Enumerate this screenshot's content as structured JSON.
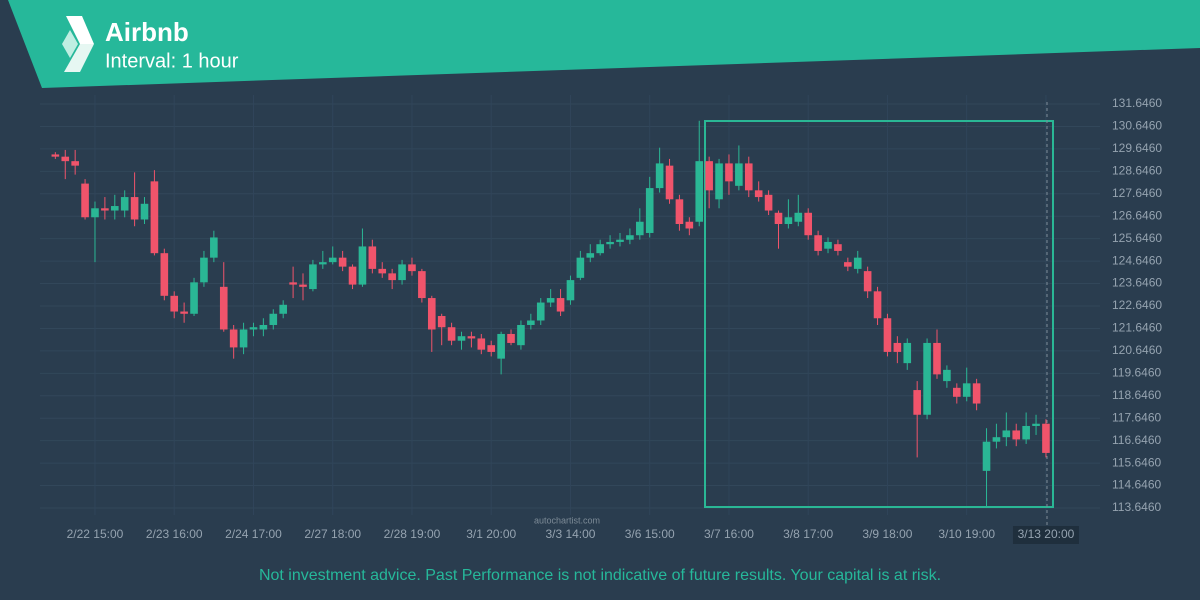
{
  "chart_data": {
    "type": "candlestick",
    "title": "Airbnb",
    "subtitle": "Interval: 1 hour",
    "source": "autochartist.com",
    "disclaimer": "Not investment advice. Past Performance is not indicative of future results. Your capital is at risk.",
    "categories": [
      null,
      null,
      null,
      null,
      "2/22 15:00",
      null,
      null,
      null,
      null,
      null,
      null,
      null,
      "2/23 16:00",
      null,
      null,
      null,
      null,
      null,
      null,
      null,
      "2/24 17:00",
      null,
      null,
      null,
      null,
      null,
      null,
      null,
      "2/27 18:00",
      null,
      null,
      null,
      null,
      null,
      null,
      null,
      "2/28 19:00",
      null,
      null,
      null,
      null,
      null,
      null,
      null,
      "3/1 20:00",
      null,
      null,
      null,
      null,
      null,
      null,
      null,
      "3/3 14:00",
      null,
      null,
      null,
      null,
      null,
      null,
      null,
      "3/6 15:00",
      null,
      null,
      null,
      null,
      null,
      null,
      null,
      "3/7 16:00",
      null,
      null,
      null,
      null,
      null,
      null,
      null,
      "3/8 17:00",
      null,
      null,
      null,
      null,
      null,
      null,
      null,
      "3/9 18:00",
      null,
      null,
      null,
      null,
      null,
      null,
      null,
      "3/10 19:00",
      null,
      null,
      null,
      null,
      null,
      null,
      null,
      "3/13 20:00"
    ],
    "open": [
      129.4,
      129.3,
      129.1,
      128.1,
      126.6,
      127.0,
      126.9,
      126.9,
      127.5,
      126.5,
      128.2,
      125.0,
      123.1,
      122.4,
      122.3,
      123.7,
      124.8,
      123.5,
      121.6,
      120.8,
      121.6,
      121.6,
      121.8,
      122.3,
      123.7,
      123.6,
      123.4,
      124.5,
      124.6,
      124.8,
      124.4,
      123.6,
      125.3,
      124.3,
      124.1,
      123.8,
      124.5,
      124.2,
      123.0,
      122.2,
      121.7,
      121.1,
      121.3,
      121.2,
      120.9,
      120.3,
      121.4,
      120.9,
      121.8,
      122.0,
      122.8,
      123.0,
      122.9,
      123.9,
      124.8,
      125.0,
      125.4,
      125.5,
      125.6,
      125.8,
      125.9,
      127.9,
      128.9,
      127.4,
      126.4,
      126.4,
      129.1,
      127.4,
      129.0,
      128.0,
      129.0,
      127.8,
      127.6,
      126.8,
      126.3,
      126.4,
      126.8,
      125.8,
      125.2,
      125.4,
      124.6,
      124.3,
      124.2,
      123.3,
      122.1,
      121.0,
      120.1,
      118.9,
      117.8,
      121.0,
      119.3,
      119.0,
      118.6,
      119.2,
      115.3,
      116.6,
      116.8,
      117.1,
      116.7,
      117.3,
      117.4
    ],
    "high": [
      129.5,
      129.6,
      129.6,
      128.3,
      127.3,
      127.5,
      127.6,
      127.8,
      128.6,
      127.5,
      128.7,
      125.2,
      123.3,
      122.8,
      123.9,
      125.1,
      126.0,
      124.6,
      121.8,
      121.9,
      121.9,
      122.1,
      122.5,
      122.9,
      124.4,
      124.1,
      124.7,
      125.1,
      125.3,
      125.1,
      124.5,
      126.1,
      125.6,
      124.6,
      124.3,
      124.7,
      124.8,
      124.3,
      123.1,
      122.3,
      121.9,
      121.5,
      121.5,
      121.4,
      121.1,
      121.5,
      121.6,
      122.0,
      122.3,
      123.0,
      123.4,
      123.4,
      124.0,
      125.1,
      125.4,
      125.6,
      125.8,
      125.9,
      126.1,
      127.0,
      128.4,
      129.7,
      129.2,
      127.6,
      126.6,
      130.9,
      129.3,
      129.2,
      129.4,
      129.8,
      129.3,
      128.2,
      127.8,
      126.9,
      127.4,
      127.6,
      127.0,
      126.0,
      125.7,
      125.6,
      124.8,
      125.1,
      124.4,
      123.5,
      122.3,
      121.3,
      121.2,
      119.3,
      121.2,
      121.6,
      120.0,
      119.2,
      119.9,
      119.4,
      117.2,
      117.4,
      117.9,
      117.4,
      117.9,
      117.8,
      117.6
    ],
    "low": [
      129.2,
      128.3,
      128.5,
      126.5,
      124.6,
      126.5,
      126.5,
      126.6,
      126.2,
      126.3,
      124.9,
      122.9,
      122.1,
      121.9,
      122.2,
      123.5,
      124.6,
      121.5,
      120.3,
      120.5,
      121.3,
      121.3,
      121.6,
      122.1,
      123.0,
      122.9,
      123.3,
      124.3,
      124.5,
      124.2,
      123.4,
      123.5,
      124.1,
      123.9,
      123.4,
      123.6,
      124.0,
      122.8,
      120.6,
      120.9,
      120.9,
      120.7,
      120.8,
      120.5,
      120.4,
      119.6,
      120.9,
      120.7,
      121.6,
      121.8,
      122.6,
      122.2,
      122.7,
      123.8,
      124.6,
      124.9,
      125.2,
      125.3,
      125.4,
      125.6,
      125.7,
      127.7,
      127.2,
      126.0,
      125.8,
      126.2,
      127.0,
      127.0,
      127.6,
      127.8,
      127.5,
      127.3,
      126.7,
      125.2,
      126.1,
      126.2,
      125.6,
      124.9,
      125.0,
      124.9,
      124.2,
      124.1,
      123.0,
      121.8,
      120.4,
      120.1,
      119.8,
      115.9,
      117.6,
      119.4,
      119.0,
      118.3,
      118.4,
      118.0,
      113.7,
      116.3,
      116.4,
      116.4,
      116.5,
      116.9,
      115.9
    ],
    "close": [
      129.3,
      129.1,
      128.9,
      126.6,
      127.0,
      126.9,
      127.1,
      127.5,
      126.5,
      127.2,
      125.0,
      123.1,
      122.4,
      122.3,
      123.7,
      124.8,
      125.7,
      121.6,
      120.8,
      121.6,
      121.7,
      121.8,
      122.3,
      122.7,
      123.6,
      123.5,
      124.5,
      124.6,
      124.8,
      124.4,
      123.6,
      125.3,
      124.3,
      124.1,
      123.8,
      124.5,
      124.2,
      123.0,
      121.6,
      121.7,
      121.1,
      121.3,
      121.2,
      120.7,
      120.6,
      121.4,
      121.0,
      121.8,
      122.0,
      122.8,
      123.0,
      122.4,
      123.8,
      124.8,
      125.0,
      125.4,
      125.5,
      125.6,
      125.8,
      126.4,
      127.9,
      129.0,
      127.4,
      126.3,
      126.1,
      129.1,
      127.8,
      129.0,
      128.2,
      129.0,
      127.8,
      127.5,
      126.9,
      126.3,
      126.6,
      126.8,
      125.8,
      125.1,
      125.5,
      125.1,
      124.4,
      124.8,
      123.3,
      122.1,
      120.6,
      120.6,
      121.0,
      117.8,
      121.0,
      119.6,
      119.8,
      118.6,
      119.2,
      118.3,
      116.6,
      116.8,
      117.1,
      116.7,
      117.3,
      117.4,
      116.1
    ],
    "up_color": "#2ab795",
    "down_color": "#f0546b",
    "ylim": [
      113.146,
      132.146
    ],
    "yticks": [
      {
        "value": 113.646,
        "label": "113.6460"
      },
      {
        "value": 114.646,
        "label": "114.6460"
      },
      {
        "value": 115.646,
        "label": "115.6460"
      },
      {
        "value": 116.646,
        "label": "116.6460"
      },
      {
        "value": 117.646,
        "label": "117.6460"
      },
      {
        "value": 118.646,
        "label": "118.6460"
      },
      {
        "value": 119.646,
        "label": "119.6460"
      },
      {
        "value": 120.646,
        "label": "120.6460"
      },
      {
        "value": 121.646,
        "label": "121.6460"
      },
      {
        "value": 122.646,
        "label": "122.6460"
      },
      {
        "value": 123.646,
        "label": "123.6460"
      },
      {
        "value": 124.646,
        "label": "124.6460"
      },
      {
        "value": 125.646,
        "label": "125.6460"
      },
      {
        "value": 126.646,
        "label": "126.6460"
      },
      {
        "value": 127.646,
        "label": "127.6460"
      },
      {
        "value": 128.646,
        "label": "128.6460"
      },
      {
        "value": 129.646,
        "label": "129.6460"
      },
      {
        "value": 130.646,
        "label": "130.6460"
      },
      {
        "value": 131.646,
        "label": "131.6460"
      }
    ],
    "grid": true
  }
}
